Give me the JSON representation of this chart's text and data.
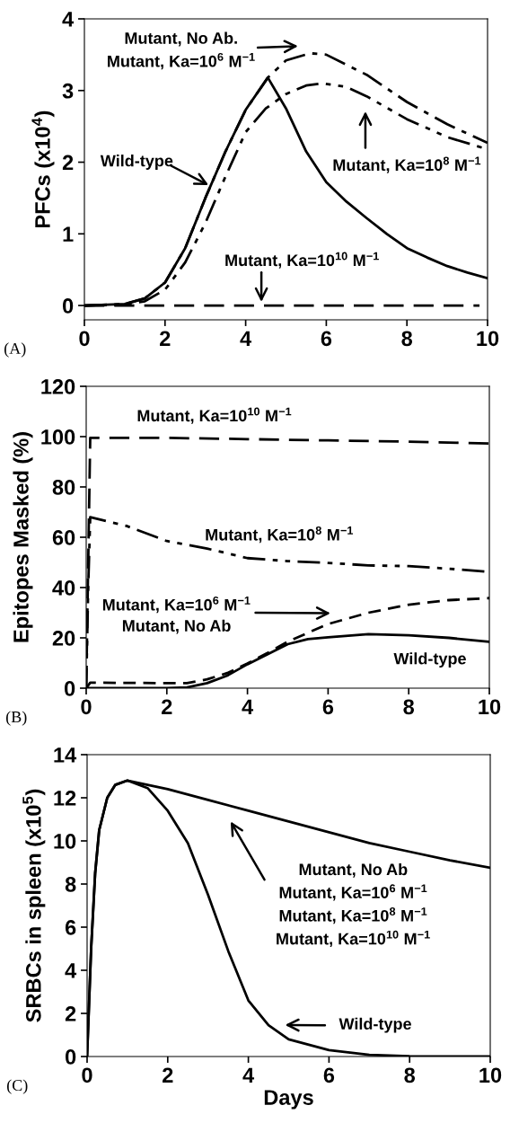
{
  "chart_data": [
    {
      "type": "line",
      "ylabel": "PFCs (x10$^{4}$)",
      "xlim": [
        0,
        10
      ],
      "xticks": [
        0,
        2,
        4,
        6,
        8,
        10
      ],
      "ylim": [
        -0.2,
        4
      ],
      "yticks": [
        0,
        1,
        2,
        3,
        4
      ],
      "grid": false,
      "legend": false,
      "color": "#000000",
      "series": [
        {
          "line_style": "solid",
          "x": [
            0,
            1,
            1.5,
            2,
            2.5,
            3,
            3.5,
            4,
            4.55,
            5,
            5.5,
            6,
            6.5,
            7,
            7.5,
            8,
            8.5,
            9,
            9.5,
            10
          ],
          "values": [
            0,
            0.02,
            0.1,
            0.32,
            0.8,
            1.5,
            2.15,
            2.73,
            3.18,
            2.75,
            2.15,
            1.72,
            1.45,
            1.22,
            1.0,
            0.8,
            0.67,
            0.55,
            0.46,
            0.38
          ]
        },
        {
          "line_style": "dashdot",
          "x": [
            0,
            1,
            1.5,
            2,
            2.5,
            3,
            3.5,
            4,
            4.55,
            5,
            5.6,
            6,
            7,
            8,
            9,
            10
          ],
          "values": [
            0,
            0.02,
            0.1,
            0.32,
            0.8,
            1.5,
            2.15,
            2.73,
            3.18,
            3.42,
            3.52,
            3.5,
            3.22,
            2.84,
            2.53,
            2.27
          ]
        },
        {
          "line_style": "dashdotdot",
          "x": [
            0,
            1,
            1.5,
            2,
            2.5,
            3,
            3.5,
            4,
            4.5,
            5,
            5.5,
            5.9,
            6.5,
            7,
            8,
            9,
            10
          ],
          "values": [
            0,
            0.01,
            0.06,
            0.22,
            0.6,
            1.15,
            1.8,
            2.42,
            2.75,
            2.95,
            3.07,
            3.1,
            3.05,
            2.92,
            2.6,
            2.35,
            2.18
          ]
        },
        {
          "line_style": "dashed",
          "x": [
            0,
            9.8
          ],
          "values": [
            0,
            0
          ]
        }
      ],
      "annotations": [
        "Mutant, No Ab.\nMutant, Ka=10$^{6}$ M$^{−1}$",
        "Wild-type",
        "Mutant, Ka=10$^{8}$ M$^{−1}$",
        "Mutant, Ka=10$^{10}$ M$^{−1}$",
        "(A)"
      ]
    },
    {
      "type": "line",
      "ylabel": "Epitopes Masked (%)",
      "xlim": [
        0,
        10
      ],
      "xticks": [
        0,
        2,
        4,
        6,
        8,
        10
      ],
      "ylim": [
        0,
        120
      ],
      "yticks": [
        0,
        20,
        40,
        60,
        80,
        100,
        120
      ],
      "grid": false,
      "legend": false,
      "color": "#000000",
      "series": [
        {
          "line_style": "dashed",
          "x": [
            0,
            0.1,
            2,
            4,
            6,
            8,
            10
          ],
          "values": [
            0,
            99.5,
            99.5,
            99,
            98.5,
            98,
            97.3
          ]
        },
        {
          "line_style": "dashdotdot",
          "x": [
            0,
            0.05,
            0.1,
            1,
            2,
            3,
            4,
            5,
            6,
            7,
            8,
            9,
            10
          ],
          "values": [
            0,
            40,
            68,
            64.5,
            58.5,
            55.5,
            51.7,
            50.5,
            49.8,
            48.8,
            48.5,
            47.5,
            46.2
          ]
        },
        {
          "line_style": "dashed_short",
          "x": [
            0,
            0.1,
            2,
            2.5,
            3,
            3.5,
            4,
            4.5,
            5,
            5.5,
            6,
            7,
            8,
            9,
            10
          ],
          "values": [
            0,
            2.2,
            2,
            2,
            3.5,
            6,
            9.8,
            14,
            18.5,
            22,
            25.5,
            30,
            33.2,
            35,
            35.8
          ]
        },
        {
          "line_style": "solid",
          "x": [
            0,
            2,
            2.5,
            3,
            3.5,
            4,
            4.5,
            5,
            5.5,
            6,
            7,
            8,
            9,
            10
          ],
          "values": [
            0,
            0,
            0.3,
            2,
            5,
            9.5,
            13.5,
            17.5,
            19.5,
            20.2,
            21.5,
            21,
            20,
            18.4
          ]
        }
      ],
      "annotations": [
        "Mutant, Ka=10$^{10}$ M$^{−1}$",
        "Mutant, Ka=10$^{8}$ M$^{−1}$",
        "Mutant, Ka=10$^{6}$ M$^{−1}$\nMutant, No Ab",
        "Wild-type",
        "(B)"
      ]
    },
    {
      "type": "line",
      "ylabel": "SRBCs in spleen (x10$^{5}$)",
      "xlabel": "Days",
      "xlim": [
        0,
        10
      ],
      "xticks": [
        0,
        2,
        4,
        6,
        8,
        10
      ],
      "ylim": [
        0,
        14
      ],
      "yticks": [
        0,
        2,
        4,
        6,
        8,
        10,
        12,
        14
      ],
      "grid": false,
      "legend": false,
      "color": "#000000",
      "series": [
        {
          "line_style": "solid",
          "x": [
            0,
            0.1,
            0.2,
            0.3,
            0.5,
            0.7,
            1,
            2,
            3,
            4,
            5,
            6,
            7,
            8,
            9,
            10
          ],
          "values": [
            0,
            5,
            8.5,
            10.5,
            12,
            12.6,
            12.8,
            12.4,
            11.9,
            11.4,
            10.9,
            10.4,
            9.9,
            9.5,
            9.1,
            8.75
          ]
        },
        {
          "line_style": "solid",
          "x": [
            0,
            0.1,
            0.2,
            0.3,
            0.5,
            0.7,
            1,
            1.5,
            2,
            2.5,
            3,
            3.5,
            4,
            4.5,
            5,
            6,
            7,
            8,
            10
          ],
          "values": [
            0,
            5,
            8.5,
            10.5,
            12,
            12.6,
            12.8,
            12.45,
            11.4,
            9.9,
            7.5,
            4.9,
            2.6,
            1.45,
            0.8,
            0.3,
            0.08,
            0.02,
            0
          ]
        }
      ],
      "annotations": [
        "Mutant, No Ab\nMutant, Ka=10$^{6}$ M$^{−1}$\nMutant, Ka=10$^{8}$ M$^{−1}$\nMutant, Ka=10$^{10}$ M$^{−1}$",
        "Wild-type",
        "(C)"
      ]
    }
  ]
}
